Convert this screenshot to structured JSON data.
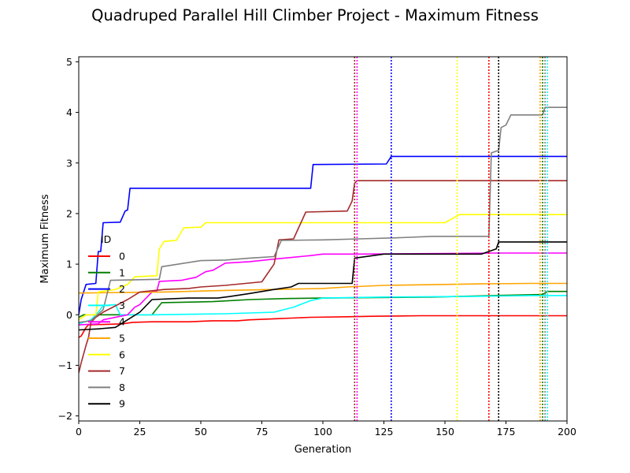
{
  "chart_data": {
    "type": "line",
    "title": "Quadruped Parallel Hill Climber Project - Maximum Fitness",
    "xlabel": "Generation",
    "ylabel": "Maximum Fitness",
    "xlim": [
      0,
      200
    ],
    "ylim": [
      -2.1,
      5.1
    ],
    "xticks": [
      0,
      25,
      50,
      75,
      100,
      125,
      150,
      175,
      200
    ],
    "yticks": [
      -2,
      -1,
      0,
      1,
      2,
      3,
      4,
      5
    ],
    "grid": false,
    "legend": {
      "title": "ID",
      "placement": "center-left"
    },
    "series": [
      {
        "name": "0",
        "color": "#ff0000",
        "stop": 168,
        "points": [
          [
            0,
            -0.45
          ],
          [
            1,
            -0.42
          ],
          [
            3,
            -0.25
          ],
          [
            4,
            -0.2
          ],
          [
            18,
            -0.18
          ],
          [
            22,
            -0.15
          ],
          [
            30,
            -0.14
          ],
          [
            45,
            -0.14
          ],
          [
            55,
            -0.12
          ],
          [
            65,
            -0.12
          ],
          [
            70,
            -0.1
          ],
          [
            80,
            -0.08
          ],
          [
            95,
            -0.05
          ],
          [
            110,
            -0.04
          ],
          [
            120,
            -0.03
          ],
          [
            140,
            -0.02
          ],
          [
            170,
            -0.02
          ],
          [
            200,
            -0.02
          ]
        ]
      },
      {
        "name": "1",
        "color": "#008000",
        "stop": 190,
        "points": [
          [
            0,
            -0.05
          ],
          [
            2,
            0.0
          ],
          [
            30,
            0.0
          ],
          [
            34,
            0.24
          ],
          [
            55,
            0.26
          ],
          [
            70,
            0.3
          ],
          [
            85,
            0.32
          ],
          [
            100,
            0.33
          ],
          [
            145,
            0.35
          ],
          [
            170,
            0.38
          ],
          [
            190,
            0.4
          ],
          [
            192,
            0.46
          ],
          [
            200,
            0.46
          ]
        ]
      },
      {
        "name": "2",
        "color": "#0000ff",
        "stop": 128,
        "points": [
          [
            0,
            0.0
          ],
          [
            1,
            0.3
          ],
          [
            3,
            0.6
          ],
          [
            7,
            0.62
          ],
          [
            8,
            1.25
          ],
          [
            9,
            1.25
          ],
          [
            10,
            1.82
          ],
          [
            17,
            1.83
          ],
          [
            19,
            2.05
          ],
          [
            20,
            2.07
          ],
          [
            21,
            2.5
          ],
          [
            30,
            2.5
          ],
          [
            95,
            2.5
          ],
          [
            96,
            2.97
          ],
          [
            126,
            2.98
          ],
          [
            128,
            3.13
          ],
          [
            200,
            3.13
          ]
        ]
      },
      {
        "name": "3",
        "color": "#00ffff",
        "stop": 192,
        "points": [
          [
            0,
            -0.18
          ],
          [
            5,
            -0.1
          ],
          [
            8,
            0.05
          ],
          [
            10,
            0.18
          ],
          [
            15,
            0.2
          ],
          [
            17,
            0.0
          ],
          [
            30,
            0.0
          ],
          [
            60,
            0.02
          ],
          [
            80,
            0.05
          ],
          [
            88,
            0.15
          ],
          [
            95,
            0.28
          ],
          [
            100,
            0.33
          ],
          [
            125,
            0.35
          ],
          [
            160,
            0.36
          ],
          [
            185,
            0.38
          ],
          [
            200,
            0.38
          ]
        ]
      },
      {
        "name": "4",
        "color": "#ff00ff",
        "stop": 114,
        "points": [
          [
            0,
            -0.2
          ],
          [
            8,
            -0.18
          ],
          [
            10,
            -0.1
          ],
          [
            20,
            0.0
          ],
          [
            23,
            0.15
          ],
          [
            25,
            0.2
          ],
          [
            27,
            0.3
          ],
          [
            30,
            0.45
          ],
          [
            32,
            0.47
          ],
          [
            33,
            0.66
          ],
          [
            42,
            0.68
          ],
          [
            45,
            0.71
          ],
          [
            48,
            0.74
          ],
          [
            52,
            0.85
          ],
          [
            55,
            0.88
          ],
          [
            60,
            1.02
          ],
          [
            70,
            1.05
          ],
          [
            80,
            1.1
          ],
          [
            95,
            1.17
          ],
          [
            100,
            1.2
          ],
          [
            115,
            1.2
          ],
          [
            150,
            1.21
          ],
          [
            170,
            1.22
          ],
          [
            200,
            1.22
          ]
        ]
      },
      {
        "name": "5",
        "color": "#ffa500",
        "stop": 189,
        "points": [
          [
            0,
            0.43
          ],
          [
            35,
            0.45
          ],
          [
            60,
            0.48
          ],
          [
            80,
            0.5
          ],
          [
            100,
            0.52
          ],
          [
            110,
            0.55
          ],
          [
            125,
            0.58
          ],
          [
            150,
            0.6
          ],
          [
            165,
            0.61
          ],
          [
            185,
            0.62
          ],
          [
            200,
            0.62
          ]
        ]
      },
      {
        "name": "6",
        "color": "#ffff00",
        "stop": 155,
        "points": [
          [
            0,
            -0.1
          ],
          [
            3,
            0.0
          ],
          [
            7,
            0.0
          ],
          [
            8,
            0.45
          ],
          [
            15,
            0.5
          ],
          [
            20,
            0.6
          ],
          [
            23,
            0.75
          ],
          [
            32,
            0.77
          ],
          [
            33,
            1.3
          ],
          [
            35,
            1.45
          ],
          [
            40,
            1.47
          ],
          [
            43,
            1.72
          ],
          [
            50,
            1.73
          ],
          [
            52,
            1.82
          ],
          [
            60,
            1.82
          ],
          [
            150,
            1.82
          ],
          [
            156,
            1.98
          ],
          [
            165,
            1.98
          ],
          [
            200,
            1.98
          ]
        ]
      },
      {
        "name": "7",
        "color": "#a52a2a",
        "stop": 113,
        "points": [
          [
            0,
            -1.15
          ],
          [
            1,
            -0.95
          ],
          [
            3,
            -0.6
          ],
          [
            4,
            -0.45
          ],
          [
            5,
            -0.15
          ],
          [
            7,
            -0.05
          ],
          [
            10,
            0.05
          ],
          [
            20,
            0.3
          ],
          [
            25,
            0.45
          ],
          [
            35,
            0.5
          ],
          [
            45,
            0.52
          ],
          [
            50,
            0.55
          ],
          [
            60,
            0.58
          ],
          [
            75,
            0.65
          ],
          [
            80,
            1.0
          ],
          [
            82,
            1.48
          ],
          [
            88,
            1.5
          ],
          [
            93,
            2.03
          ],
          [
            110,
            2.05
          ],
          [
            112,
            2.25
          ],
          [
            113,
            2.6
          ],
          [
            114,
            2.65
          ],
          [
            200,
            2.65
          ]
        ]
      },
      {
        "name": "8",
        "color": "#808080",
        "stop": 191,
        "points": [
          [
            0,
            -0.15
          ],
          [
            5,
            -0.12
          ],
          [
            10,
            0.1
          ],
          [
            13,
            0.68
          ],
          [
            33,
            0.7
          ],
          [
            34,
            0.95
          ],
          [
            50,
            1.07
          ],
          [
            60,
            1.08
          ],
          [
            70,
            1.12
          ],
          [
            80,
            1.15
          ],
          [
            83,
            1.47
          ],
          [
            100,
            1.48
          ],
          [
            115,
            1.5
          ],
          [
            130,
            1.52
          ],
          [
            145,
            1.55
          ],
          [
            165,
            1.55
          ],
          [
            168,
            1.55
          ],
          [
            169,
            3.2
          ],
          [
            172,
            3.25
          ],
          [
            173,
            3.7
          ],
          [
            175,
            3.75
          ],
          [
            177,
            3.95
          ],
          [
            190,
            3.95
          ],
          [
            191,
            4.1
          ],
          [
            200,
            4.1
          ]
        ]
      },
      {
        "name": "9",
        "color": "#000000",
        "stop": 172,
        "points": [
          [
            0,
            -0.3
          ],
          [
            8,
            -0.28
          ],
          [
            15,
            -0.25
          ],
          [
            25,
            0.05
          ],
          [
            30,
            0.3
          ],
          [
            45,
            0.33
          ],
          [
            57,
            0.33
          ],
          [
            62,
            0.36
          ],
          [
            70,
            0.42
          ],
          [
            80,
            0.5
          ],
          [
            87,
            0.55
          ],
          [
            90,
            0.62
          ],
          [
            112,
            0.62
          ],
          [
            113,
            1.12
          ],
          [
            125,
            1.2
          ],
          [
            140,
            1.2
          ],
          [
            165,
            1.2
          ],
          [
            171,
            1.3
          ],
          [
            172,
            1.44
          ],
          [
            200,
            1.44
          ]
        ]
      }
    ]
  }
}
